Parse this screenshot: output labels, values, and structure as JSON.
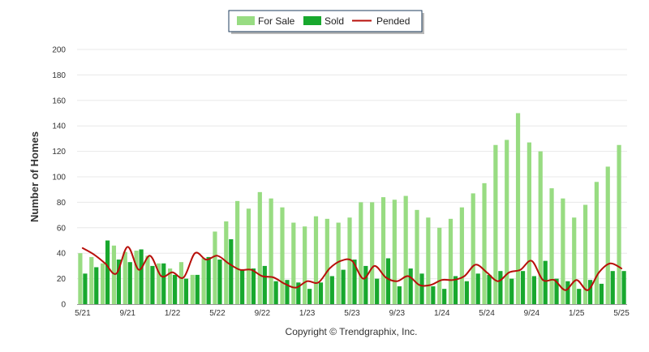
{
  "chart_data": {
    "type": "bar",
    "ylabel": "Number of Homes",
    "ylim": [
      0,
      200
    ],
    "yticks": [
      0,
      20,
      40,
      60,
      80,
      100,
      120,
      140,
      160,
      180,
      200
    ],
    "grid": true,
    "legend_position": "top-center",
    "x_tick_labels": [
      {
        "index": 0,
        "label": "5/21"
      },
      {
        "index": 4,
        "label": "9/21"
      },
      {
        "index": 8,
        "label": "1/22"
      },
      {
        "index": 12,
        "label": "5/22"
      },
      {
        "index": 16,
        "label": "9/22"
      },
      {
        "index": 20,
        "label": "1/23"
      },
      {
        "index": 24,
        "label": "5/23"
      },
      {
        "index": 28,
        "label": "9/23"
      },
      {
        "index": 32,
        "label": "1/24"
      },
      {
        "index": 36,
        "label": "5/24"
      },
      {
        "index": 40,
        "label": "9/24"
      },
      {
        "index": 44,
        "label": "1/25"
      },
      {
        "index": 48,
        "label": "5/25"
      }
    ],
    "series": [
      {
        "name": "For Sale",
        "type": "bar",
        "color": "#98dc82",
        "values": [
          40,
          37,
          32,
          46,
          41,
          42,
          38,
          32,
          28,
          33,
          23,
          36,
          57,
          65,
          81,
          75,
          88,
          83,
          76,
          64,
          61,
          69,
          67,
          64,
          68,
          80,
          80,
          84,
          82,
          85,
          74,
          68,
          60,
          67,
          76,
          87,
          95,
          125,
          129,
          150,
          127,
          120,
          91,
          83,
          68,
          78,
          96,
          108,
          125
        ]
      },
      {
        "name": "Sold",
        "type": "bar",
        "color": "#18a82e",
        "values": [
          24,
          29,
          50,
          35,
          33,
          43,
          30,
          32,
          23,
          20,
          23,
          37,
          35,
          51,
          27,
          28,
          30,
          18,
          19,
          17,
          12,
          17,
          22,
          27,
          35,
          30,
          20,
          36,
          14,
          28,
          24,
          14,
          12,
          22,
          18,
          24,
          23,
          26,
          20,
          26,
          22,
          34,
          20,
          18,
          12,
          19,
          16,
          26,
          26
        ]
      },
      {
        "name": "Pended",
        "type": "line",
        "color": "#b80f0a",
        "values": [
          44,
          39,
          32,
          24,
          45,
          27,
          38,
          22,
          25,
          21,
          40,
          35,
          38,
          32,
          27,
          27,
          22,
          21,
          16,
          13,
          18,
          17,
          28,
          34,
          34,
          20,
          30,
          21,
          18,
          22,
          15,
          15,
          19,
          19,
          22,
          31,
          25,
          18,
          25,
          27,
          34,
          19,
          19,
          11,
          19,
          11,
          25,
          32,
          28
        ]
      }
    ]
  },
  "copyright": "Copyright © Trendgraphix, Inc."
}
